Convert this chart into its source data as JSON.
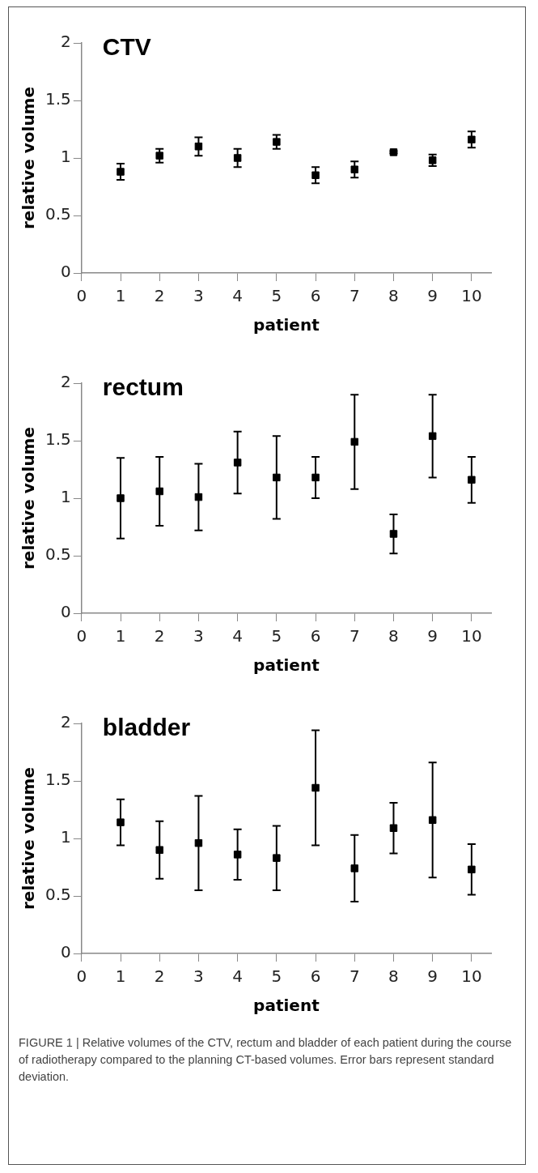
{
  "chart_data": [
    {
      "type": "scatter",
      "title": "CTV",
      "xlabel": "patient",
      "ylabel": "relative volume",
      "x": [
        1,
        2,
        3,
        4,
        5,
        6,
        7,
        8,
        9,
        10
      ],
      "xlim": [
        0,
        10.5
      ],
      "xticks": [
        0,
        1,
        2,
        3,
        4,
        5,
        6,
        7,
        8,
        9,
        10
      ],
      "ylim": [
        0,
        2
      ],
      "yticks": [
        0,
        0.5,
        1,
        1.5,
        2
      ],
      "grid": false,
      "legend": false,
      "marker": "square",
      "series": [
        {
          "color": "#000000",
          "values": [
            0.88,
            1.02,
            1.1,
            1.0,
            1.14,
            0.85,
            0.9,
            1.05,
            0.98,
            1.16
          ],
          "errors": [
            0.07,
            0.06,
            0.08,
            0.08,
            0.06,
            0.07,
            0.07,
            0.01,
            0.05,
            0.07
          ]
        }
      ]
    },
    {
      "type": "scatter",
      "title": "rectum",
      "xlabel": "patient",
      "ylabel": "relative volume",
      "x": [
        1,
        2,
        3,
        4,
        5,
        6,
        7,
        8,
        9,
        10
      ],
      "xlim": [
        0,
        10.5
      ],
      "xticks": [
        0,
        1,
        2,
        3,
        4,
        5,
        6,
        7,
        8,
        9,
        10
      ],
      "ylim": [
        0,
        2
      ],
      "yticks": [
        0,
        0.5,
        1,
        1.5,
        2
      ],
      "grid": false,
      "legend": false,
      "marker": "square",
      "series": [
        {
          "color": "#000000",
          "values": [
            1.0,
            1.06,
            1.01,
            1.31,
            1.18,
            1.18,
            1.49,
            0.69,
            1.54,
            1.16
          ],
          "errors": [
            0.35,
            0.3,
            0.29,
            0.27,
            0.36,
            0.18,
            0.41,
            0.17,
            0.36,
            0.2
          ]
        }
      ]
    },
    {
      "type": "scatter",
      "title": "bladder",
      "xlabel": "patient",
      "ylabel": "relative volume",
      "x": [
        1,
        2,
        3,
        4,
        5,
        6,
        7,
        8,
        9,
        10
      ],
      "xlim": [
        0,
        10.5
      ],
      "xticks": [
        0,
        1,
        2,
        3,
        4,
        5,
        6,
        7,
        8,
        9,
        10
      ],
      "ylim": [
        0,
        2
      ],
      "yticks": [
        0,
        0.5,
        1,
        1.5,
        2
      ],
      "grid": false,
      "legend": false,
      "marker": "square",
      "series": [
        {
          "color": "#000000",
          "values": [
            1.14,
            0.9,
            0.96,
            0.86,
            0.83,
            1.44,
            0.74,
            1.09,
            1.16,
            0.73
          ],
          "errors": [
            0.2,
            0.25,
            0.41,
            0.22,
            0.28,
            0.5,
            0.29,
            0.22,
            0.5,
            0.22
          ]
        }
      ],
      "annotations": [
        "FIGURE 1 | Relative volumes of the CTV, rectum and bladder of each patient during the course of radiotherapy compared to the planning CT-based volumes. Error bars represent standard deviation."
      ]
    }
  ]
}
